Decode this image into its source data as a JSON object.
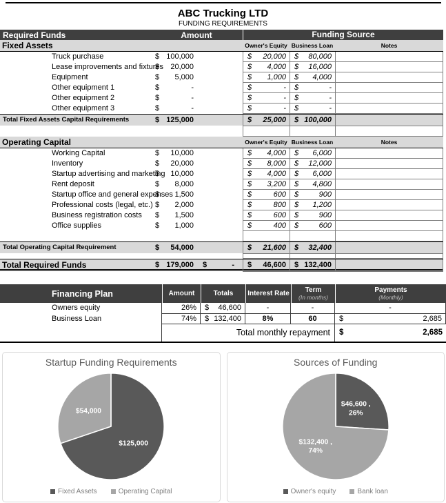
{
  "title": "ABC Trucking LTD",
  "subtitle": "FUNDING REQUIREMENTS",
  "colors": {
    "header_bar": "#3f3f3f",
    "band_gray": "#d9d9d9",
    "cell_border": "#7f7f7f",
    "pie_dark": "#595959",
    "pie_light": "#a6a6a6",
    "legend_text": "#7f7f7f"
  },
  "main_table": {
    "header": {
      "required_funds": "Required Funds",
      "amount": "Amount",
      "funding_source": "Funding Source"
    },
    "sub_headers": {
      "owners_equity": "Owner's Equity",
      "business_loan": "Business Loan",
      "notes": "Notes"
    },
    "sections": [
      {
        "name": "Fixed Assets",
        "rows": [
          {
            "label": "Truck purchase",
            "amount": "100,000",
            "oe": "20,000",
            "bl": "80,000",
            "notes": ""
          },
          {
            "label": "Lease improvements and fixtures",
            "amount": "20,000",
            "oe": "4,000",
            "bl": "16,000",
            "notes": ""
          },
          {
            "label": "Equipment",
            "amount": "5,000",
            "oe": "1,000",
            "bl": "4,000",
            "notes": ""
          },
          {
            "label": "Other equipment 1",
            "amount": "-",
            "oe": "-",
            "bl": "-",
            "notes": ""
          },
          {
            "label": "Other equipment 2",
            "amount": "-",
            "oe": "-",
            "bl": "-",
            "notes": ""
          },
          {
            "label": "Other equipment 3",
            "amount": "-",
            "oe": "-",
            "bl": "-",
            "notes": ""
          }
        ],
        "gap_before_total": false,
        "total": {
          "label": "Total Fixed Assets Capital Requirements",
          "amount": "125,000",
          "oe": "25,000",
          "bl": "100,000"
        }
      },
      {
        "name": "Operating Capital",
        "rows": [
          {
            "label": "Working Capital",
            "amount": "10,000",
            "oe": "4,000",
            "bl": "6,000",
            "notes": ""
          },
          {
            "label": "Inventory",
            "amount": "20,000",
            "oe": "8,000",
            "bl": "12,000",
            "notes": ""
          },
          {
            "label": "Startup advertising and marketing",
            "amount": "10,000",
            "oe": "4,000",
            "bl": "6,000",
            "notes": ""
          },
          {
            "label": "Rent deposit",
            "amount": "8,000",
            "oe": "3,200",
            "bl": "4,800",
            "notes": ""
          },
          {
            "label": "Startup office and general expenses",
            "amount": "1,500",
            "oe": "600",
            "bl": "900",
            "notes": ""
          },
          {
            "label": "Professional costs (legal, etc.)",
            "amount": "2,000",
            "oe": "800",
            "bl": "1,200",
            "notes": ""
          },
          {
            "label": "Business registration costs",
            "amount": "1,500",
            "oe": "600",
            "bl": "900",
            "notes": ""
          },
          {
            "label": "Office supplies",
            "amount": "1,000",
            "oe": "400",
            "bl": "600",
            "notes": ""
          }
        ],
        "gap_before_total": true,
        "total": {
          "label": "Total Operating Capital Requirement",
          "amount": "54,000",
          "oe": "21,600",
          "bl": "32,400"
        }
      }
    ],
    "grand_total": {
      "label": "Total Required Funds",
      "amount": "179,000",
      "amount2": "-",
      "oe": "46,600",
      "bl": "132,400"
    }
  },
  "financing_plan": {
    "title": "Financing Plan",
    "headers": {
      "amount": "Amount",
      "totals": "Totals",
      "interest_rate": "Interest Rate",
      "term": "Term",
      "term_sub": "(In months)",
      "payments": "Payments",
      "payments_sub": "(Monthly)"
    },
    "rows": [
      {
        "label": "Owners equity",
        "amount": "26%",
        "totals": "46,600",
        "interest": "-",
        "term": "-",
        "payment": "-"
      },
      {
        "label": "Business Loan",
        "amount": "74%",
        "totals": "132,400",
        "interest": "8%",
        "term": "60",
        "payment": "2,685"
      }
    ],
    "footer": {
      "label": "Total monthly repayment",
      "payment": "2,685"
    }
  },
  "chart_data": [
    {
      "type": "pie",
      "title": "Startup Funding Requirements",
      "legend_position": "bottom",
      "slices": [
        {
          "label": "Fixed Assets",
          "value": 125000,
          "display": [
            "$125,000"
          ],
          "color": "#595959"
        },
        {
          "label": "Operating Capital",
          "value": 54000,
          "display": [
            "$54,000"
          ],
          "color": "#a6a6a6"
        }
      ]
    },
    {
      "type": "pie",
      "title": "Sources of Funding",
      "legend_position": "bottom",
      "slices": [
        {
          "label": "Owner's equity",
          "value": 46600,
          "display": [
            "$46,600 ,",
            "26%"
          ],
          "color": "#595959"
        },
        {
          "label": "Bank loan",
          "value": 132400,
          "display": [
            "$132,400 ,",
            "74%"
          ],
          "color": "#a6a6a6"
        }
      ]
    }
  ]
}
